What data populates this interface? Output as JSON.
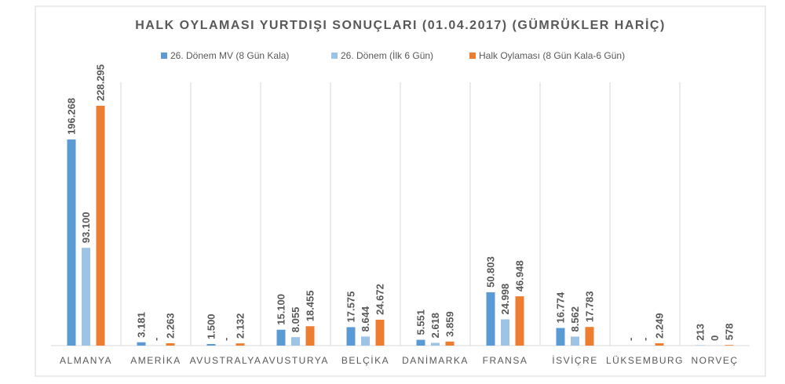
{
  "chart_data": {
    "type": "bar",
    "title": "HALK OYLAMASI YURTDIŞI SONUÇLARI (01.04.2017) (GÜMRÜKLER HARİÇ)",
    "categories": [
      "ALMANYA",
      "AMERİKA",
      "AVUSTRALYA",
      "AVUSTURYA",
      "BELÇİKA",
      "DANİMARKA",
      "FRANSA",
      "İSVİÇRE",
      "LÜKSEMBURG",
      "NORVEÇ"
    ],
    "series": [
      {
        "name": "26. Dönem MV (8 Gün Kala)",
        "color": "#5b9bd5",
        "values": [
          196268,
          3181,
          1500,
          15100,
          17575,
          5551,
          50803,
          16774,
          null,
          213
        ],
        "value_labels": [
          "196.268",
          "3.181",
          "1.500",
          "15.100",
          "17.575",
          "5.551",
          "50.803",
          "16.774",
          "-",
          "213"
        ]
      },
      {
        "name": "26. Dönem (İlk 6 Gün)",
        "color": "#9dc3e6",
        "values": [
          93100,
          null,
          null,
          8055,
          8644,
          2618,
          24998,
          8562,
          null,
          0
        ],
        "value_labels": [
          "93.100",
          "-",
          "-",
          "8.055",
          "8.644",
          "2.618",
          "24.998",
          "8.562",
          "-",
          "0"
        ]
      },
      {
        "name": "Halk Oylaması (8 Gün Kala-6 Gün)",
        "color": "#ed7d31",
        "values": [
          228295,
          2263,
          2132,
          18455,
          24672,
          3859,
          46948,
          17783,
          2249,
          578
        ],
        "value_labels": [
          "228.295",
          "2.263",
          "2.132",
          "18.455",
          "24.672",
          "3.859",
          "46.948",
          "17.783",
          "2.249",
          "578"
        ]
      }
    ]
  }
}
